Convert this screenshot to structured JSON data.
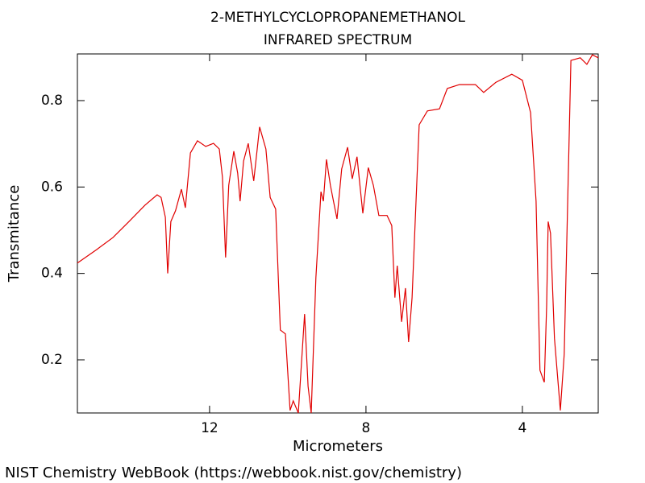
{
  "chart_data": {
    "type": "line",
    "title": "2-METHYLCYCLOPROPANEMETHANOL",
    "subtitle": "INFRARED SPECTRUM",
    "x_label": "Micrometers",
    "y_label": "Transmitance",
    "footer": "NIST Chemistry WebBook (https://webbook.nist.gov/chemistry)",
    "xlim": [
      15.38,
      2.06
    ],
    "ylim": [
      0.077,
      0.908
    ],
    "xticks": [
      12,
      8,
      4
    ],
    "yticks": [
      0.2,
      0.4,
      0.6,
      0.8
    ],
    "series": [
      {
        "color": "#e00000",
        "x": [
          15.38,
          14.89,
          14.47,
          14.06,
          13.65,
          13.34,
          13.24,
          13.13,
          13.07,
          12.99,
          12.87,
          12.72,
          12.62,
          12.49,
          12.31,
          12.1,
          11.9,
          11.75,
          11.67,
          11.59,
          11.51,
          11.38,
          11.28,
          11.22,
          11.13,
          11.01,
          10.87,
          10.72,
          10.56,
          10.45,
          10.31,
          10.19,
          10.06,
          9.94,
          9.86,
          9.73,
          9.57,
          9.48,
          9.4,
          9.28,
          9.15,
          9.09,
          9.01,
          8.91,
          8.85,
          8.74,
          8.62,
          8.47,
          8.35,
          8.23,
          8.08,
          7.94,
          7.81,
          7.67,
          7.46,
          7.34,
          7.26,
          7.2,
          7.09,
          6.99,
          6.91,
          6.82,
          6.64,
          6.43,
          6.12,
          5.92,
          5.61,
          5.2,
          4.99,
          4.68,
          4.27,
          4.0,
          3.79,
          3.65,
          3.55,
          3.44,
          3.38,
          3.34,
          3.28,
          3.18,
          3.03,
          2.93,
          2.76,
          2.52,
          2.35,
          2.21,
          2.06
        ],
        "values": [
          0.424,
          0.455,
          0.483,
          0.52,
          0.558,
          0.582,
          0.576,
          0.53,
          0.4,
          0.52,
          0.545,
          0.595,
          0.552,
          0.679,
          0.707,
          0.694,
          0.701,
          0.688,
          0.623,
          0.437,
          0.604,
          0.683,
          0.632,
          0.567,
          0.66,
          0.701,
          0.614,
          0.739,
          0.688,
          0.576,
          0.549,
          0.269,
          0.26,
          0.083,
          0.105,
          0.077,
          0.306,
          0.139,
          0.077,
          0.39,
          0.589,
          0.567,
          0.664,
          0.604,
          0.576,
          0.526,
          0.642,
          0.692,
          0.619,
          0.67,
          0.539,
          0.645,
          0.604,
          0.534,
          0.534,
          0.511,
          0.344,
          0.418,
          0.288,
          0.366,
          0.241,
          0.344,
          0.744,
          0.776,
          0.781,
          0.828,
          0.837,
          0.837,
          0.819,
          0.842,
          0.861,
          0.847,
          0.772,
          0.567,
          0.176,
          0.148,
          0.325,
          0.52,
          0.493,
          0.25,
          0.083,
          0.213,
          0.893,
          0.899,
          0.884,
          0.906,
          0.899
        ]
      }
    ]
  }
}
